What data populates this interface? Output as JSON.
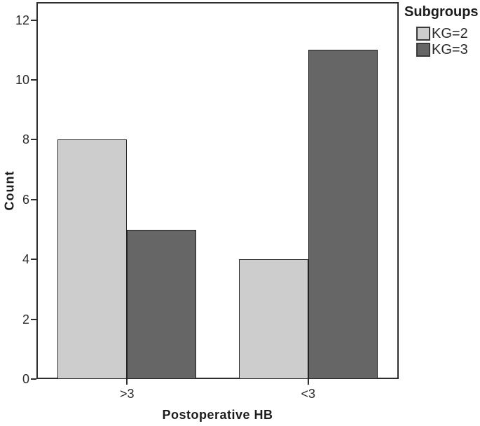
{
  "chart_data": {
    "type": "bar",
    "title": "",
    "xlabel": "Postoperative HB",
    "ylabel": "Count",
    "categories": [
      ">3",
      "<3"
    ],
    "series": [
      {
        "name": "KG=2",
        "color": "#cdcdcd",
        "values": [
          8,
          4
        ]
      },
      {
        "name": "KG=3",
        "color": "#666666",
        "values": [
          5,
          11
        ]
      }
    ],
    "ylim": [
      0,
      12.6
    ],
    "yticks": [
      0,
      2,
      4,
      6,
      8,
      10,
      12
    ],
    "grid": false,
    "legend": {
      "title": "Subgroups",
      "position": "top-right-outside"
    },
    "colors": {
      "frame": "#2e2e2e",
      "bar_edge": "#222222",
      "text": "#2b2b2b",
      "background": "#ffffff"
    }
  }
}
